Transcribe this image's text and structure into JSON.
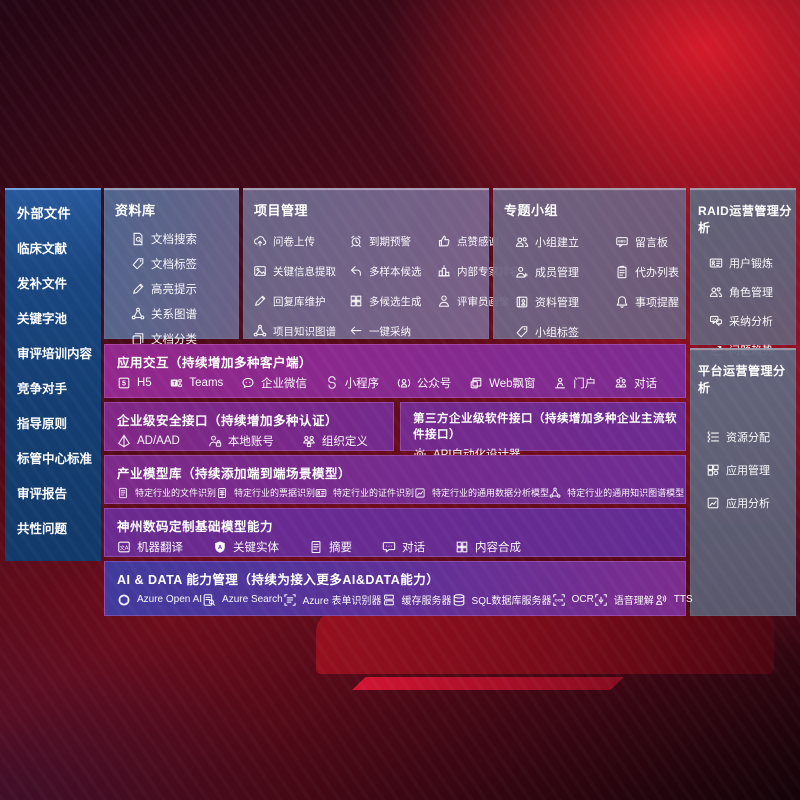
{
  "palette": {
    "background_red": "#6e0d1c",
    "sidebar_blue": "#1a4781",
    "panel_slate": "#5f6a86",
    "row_purple": "#7c2b8d",
    "row_indigo": "#403a9d",
    "device_red": "#9c1120",
    "text": "#ffffff"
  },
  "sidebar": {
    "title": "外部文件",
    "items": [
      "临床文献",
      "发补文件",
      "关键字池",
      "审评培训内容",
      "竞争对手",
      "指导原则",
      "标管中心标准",
      "审评报告",
      "共性问题"
    ]
  },
  "library": {
    "title": "资料库",
    "items": [
      {
        "icon": "doc-search",
        "label": "文档搜索"
      },
      {
        "icon": "tag",
        "label": "文档标签"
      },
      {
        "icon": "pencil",
        "label": "高亮提示"
      },
      {
        "icon": "network",
        "label": "关系图谱"
      },
      {
        "icon": "docs",
        "label": "文档分类"
      }
    ]
  },
  "project": {
    "title": "项目管理",
    "items": [
      {
        "icon": "cloud-up",
        "label": "问卷上传"
      },
      {
        "icon": "alarm",
        "label": "到期预警"
      },
      {
        "icon": "thumb",
        "label": "点赞感谢"
      },
      {
        "icon": "image",
        "label": "关键信息提取"
      },
      {
        "icon": "reply",
        "label": "多样本候选"
      },
      {
        "icon": "podium",
        "label": "内部专家排名"
      },
      {
        "icon": "pencil",
        "label": "回复库维护"
      },
      {
        "icon": "grid4",
        "label": "多候选生成"
      },
      {
        "icon": "person",
        "label": "评审员画像"
      },
      {
        "icon": "network",
        "label": "项目知识图谱"
      },
      {
        "icon": "arrow",
        "label": "一键采纳"
      }
    ]
  },
  "groups": {
    "title": "专题小组",
    "items": [
      {
        "icon": "people",
        "label": "小组建立"
      },
      {
        "icon": "bbs",
        "label": "留言板"
      },
      {
        "icon": "person-plus",
        "label": "成员管理"
      },
      {
        "icon": "clipboard",
        "label": "代办列表"
      },
      {
        "icon": "album",
        "label": "资料管理"
      },
      {
        "icon": "bell",
        "label": "事项提醒"
      },
      {
        "icon": "tag",
        "label": "小组标签"
      }
    ]
  },
  "raid": {
    "title": "RAID运营管理分析",
    "items": [
      {
        "icon": "idcard",
        "label": "用户锻炼"
      },
      {
        "icon": "people",
        "label": "角色管理"
      },
      {
        "icon": "qa",
        "label": "采纳分析"
      },
      {
        "icon": "trend",
        "label": "问题趋势"
      }
    ]
  },
  "platform": {
    "title": "平台运营管理分析",
    "items": [
      {
        "icon": "wavy-list",
        "label": "资源分配"
      },
      {
        "icon": "grid3",
        "label": "应用管理"
      },
      {
        "icon": "chart-box",
        "label": "应用分析"
      }
    ]
  },
  "interaction": {
    "title": "应用交互（持续增加多种客户端）",
    "items": [
      {
        "icon": "h5",
        "label": "H5"
      },
      {
        "icon": "teams",
        "label": "Teams"
      },
      {
        "icon": "wecom",
        "label": "企业微信"
      },
      {
        "icon": "mini",
        "label": "小程序"
      },
      {
        "icon": "public",
        "label": "公众号"
      },
      {
        "icon": "webwin",
        "label": "Web飘窗"
      },
      {
        "icon": "portal",
        "label": "门户"
      },
      {
        "icon": "dialog",
        "label": "对话"
      }
    ]
  },
  "security": {
    "title": "企业级安全接口（持续增加多种认证）",
    "items": [
      {
        "icon": "diamond",
        "label": "AD/AAD"
      },
      {
        "icon": "person-lock",
        "label": "本地账号"
      },
      {
        "icon": "org",
        "label": "组织定义"
      }
    ]
  },
  "third_party": {
    "title": "第三方企业级软件接口（持续增加多种企业主流软件接口）",
    "items": [
      {
        "icon": "gear",
        "label": "API自动化设计器"
      }
    ]
  },
  "industry": {
    "title": "产业模型库（持续添加端到端场景模型）",
    "items": [
      {
        "icon": "doc",
        "label": "特定行业的文件识别"
      },
      {
        "icon": "doc-table",
        "label": "特定行业的票据识别"
      },
      {
        "icon": "idcard",
        "label": "特定行业的证件识别"
      },
      {
        "icon": "chart-box",
        "label": "特定行业的通用数据分析模型"
      },
      {
        "icon": "network",
        "label": "特定行业的通用知识图谱模型"
      }
    ]
  },
  "base_models": {
    "title": "神州数码定制基础模型能力",
    "items": [
      {
        "icon": "translate",
        "label": "机器翻译"
      },
      {
        "icon": "shield-a",
        "label": "关键实体"
      },
      {
        "icon": "doc",
        "label": "摘要"
      },
      {
        "icon": "bubble",
        "label": "对话"
      },
      {
        "icon": "grid4",
        "label": "内容合成"
      }
    ]
  },
  "ai_data": {
    "title": "AI & DATA 能力管理（持续为接入更多AI&DATA能力）",
    "items": [
      {
        "icon": "openai",
        "label": "Azure Open AI"
      },
      {
        "icon": "search-doc",
        "label": "Azure Search"
      },
      {
        "icon": "form",
        "label": "Azure 表单识别器"
      },
      {
        "icon": "server",
        "label": "缓存服务器"
      },
      {
        "icon": "db",
        "label": "SQL数据库服务器"
      },
      {
        "icon": "ocr",
        "label": "OCR"
      },
      {
        "icon": "voice",
        "label": "语音理解"
      },
      {
        "icon": "tts",
        "label": "TTS"
      }
    ]
  }
}
